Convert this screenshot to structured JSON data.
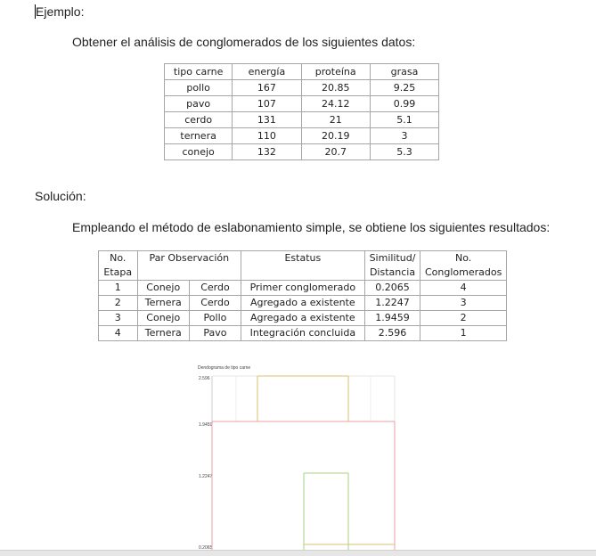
{
  "example_label": "Ejemplo:",
  "intro_text": "Obtener el análisis de conglomerados de los siguientes datos:",
  "data_table": {
    "headers": [
      "tipo carne",
      "energía",
      "proteína",
      "grasa"
    ],
    "rows": [
      [
        "pollo",
        "167",
        "20.85",
        "9.25"
      ],
      [
        "pavo",
        "107",
        "24.12",
        "0.99"
      ],
      [
        "cerdo",
        "131",
        "21",
        "5.1"
      ],
      [
        "ternera",
        "110",
        "20.19",
        "3"
      ],
      [
        "conejo",
        "132",
        "20.7",
        "5.3"
      ]
    ]
  },
  "solution_label": "Solución:",
  "method_text": "Empleando el método de eslabonamiento simple, se obtiene los siguientes resultados:",
  "results_table": {
    "headers": {
      "etapa": "No.\nEtapa",
      "par": "Par Observación",
      "estatus": "Estatus",
      "similitud": "Similitud/\nDistancia",
      "conglomerados": "No.\nConglomerados"
    },
    "rows": [
      [
        "1",
        "Conejo",
        "Cerdo",
        "Primer conglomerado",
        "0.2065",
        "4"
      ],
      [
        "2",
        "Ternera",
        "Cerdo",
        "Agregado a existente",
        "1.2247",
        "3"
      ],
      [
        "3",
        "Conejo",
        "Pollo",
        "Agregado a existente",
        "1.9459",
        "2"
      ],
      [
        "4",
        "Ternera",
        "Pavo",
        "Integración concluida",
        "2.596",
        "1"
      ]
    ]
  },
  "dendrogram": {
    "title": "Dendograma de tipo carne",
    "ticks": [
      "2.596",
      "1.9459",
      "1.2247",
      "0.2065"
    ],
    "line_color_green": "#a8d080",
    "line_color_red": "#e8a0a8"
  }
}
